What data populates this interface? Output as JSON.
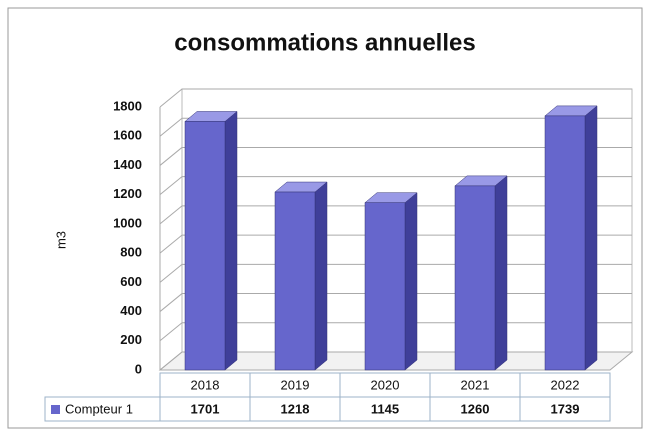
{
  "chart_data": {
    "type": "bar3d",
    "title": "consommations annuelles",
    "y_label": "m3",
    "categories": [
      "2018",
      "2019",
      "2020",
      "2021",
      "2022"
    ],
    "series": [
      {
        "name": "Compteur 1",
        "color": "#6666cc",
        "values": [
          1701,
          1218,
          1145,
          1260,
          1739
        ]
      }
    ],
    "ylim": [
      0,
      1800
    ],
    "yticks": [
      0,
      200,
      400,
      600,
      800,
      1000,
      1200,
      1400,
      1600,
      1800
    ],
    "grid": true,
    "data_table": true
  }
}
